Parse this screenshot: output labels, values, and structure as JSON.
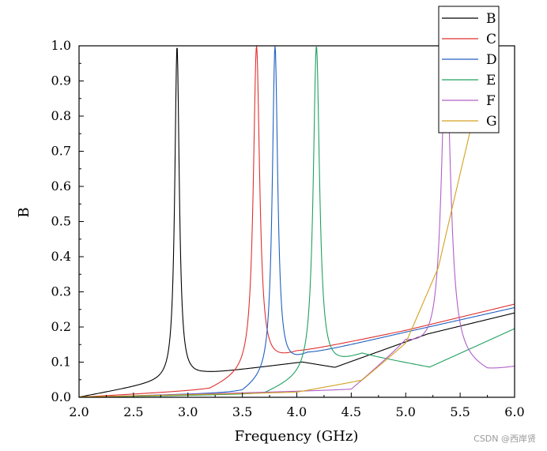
{
  "chart_data": {
    "type": "line",
    "title": "",
    "xlabel": "Frequency (GHz)",
    "ylabel": "B",
    "xlim": [
      2.0,
      6.0
    ],
    "ylim": [
      0.0,
      1.0
    ],
    "x_ticks": [
      "2.0",
      "2.5",
      "3.0",
      "3.5",
      "4.0",
      "4.5",
      "5.0",
      "5.5",
      "6.0"
    ],
    "y_ticks": [
      "0.0",
      "0.1",
      "0.2",
      "0.3",
      "0.4",
      "0.5",
      "0.6",
      "0.7",
      "0.8",
      "0.9",
      "1.0"
    ],
    "legend_position": "top-right",
    "series": [
      {
        "name": "B",
        "color": "#000000",
        "f0": 2.9,
        "width": 0.05,
        "base": [
          [
            2.0,
            0.0
          ],
          [
            3.15,
            0.065
          ],
          [
            4.05,
            0.1
          ],
          [
            4.35,
            0.085
          ],
          [
            5.2,
            0.18
          ],
          [
            6.0,
            0.24
          ]
        ]
      },
      {
        "name": "C",
        "color": "#e03030",
        "f0": 3.63,
        "width": 0.07,
        "base": [
          [
            2.0,
            0.0
          ],
          [
            3.2,
            0.02
          ],
          [
            4.0,
            0.125
          ],
          [
            5.0,
            0.19
          ],
          [
            6.0,
            0.265
          ]
        ]
      },
      {
        "name": "D",
        "color": "#2060c0",
        "f0": 3.8,
        "width": 0.06,
        "base": [
          [
            2.0,
            0.0
          ],
          [
            3.5,
            0.012
          ],
          [
            4.1,
            0.12
          ],
          [
            5.0,
            0.185
          ],
          [
            6.0,
            0.255
          ]
        ]
      },
      {
        "name": "E",
        "color": "#20a060",
        "f0": 4.18,
        "width": 0.07,
        "base": [
          [
            2.0,
            0.0
          ],
          [
            3.7,
            0.008
          ],
          [
            4.6,
            0.12
          ],
          [
            5.22,
            0.085
          ],
          [
            6.0,
            0.195
          ]
        ]
      },
      {
        "name": "F",
        "color": "#b060c8",
        "f0": 5.37,
        "width": 0.1,
        "base": [
          [
            2.0,
            0.0
          ],
          [
            4.5,
            0.02
          ],
          [
            5.0,
            0.15
          ],
          [
            5.75,
            0.068
          ],
          [
            6.0,
            0.083
          ]
        ]
      },
      {
        "name": "G",
        "color": "#d4a020",
        "f0": 6.15,
        "width": 0.3,
        "base": [
          [
            2.0,
            0.0
          ],
          [
            4.0,
            0.01
          ],
          [
            4.6,
            0.04
          ],
          [
            5.0,
            0.14
          ],
          [
            5.3,
            0.35
          ],
          [
            5.6,
            0.75
          ]
        ]
      }
    ]
  },
  "watermark": "CSDN @西岸贤"
}
